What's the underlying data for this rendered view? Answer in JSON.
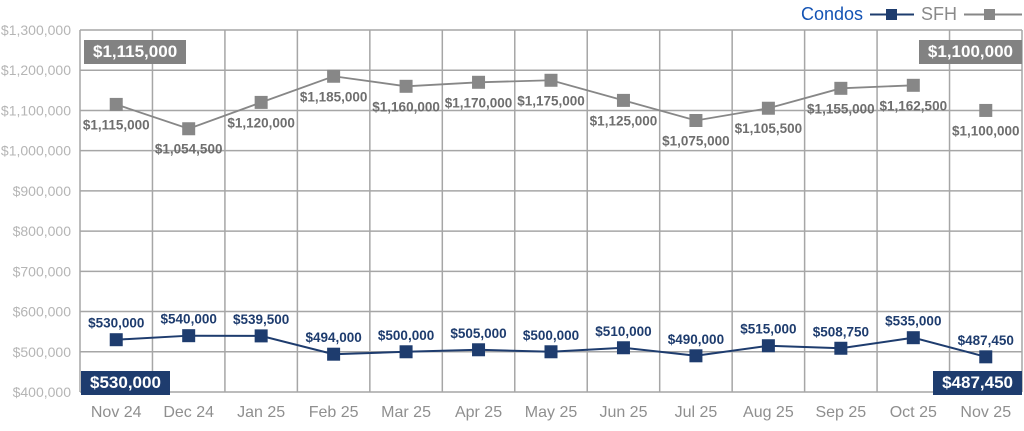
{
  "legend": {
    "condos_label": "Condos",
    "sfh_label": "SFH"
  },
  "callouts": {
    "top_left": "$1,115,000",
    "top_right": "$1,100,000",
    "bottom_left": "$530,000",
    "bottom_right": "$487,450"
  },
  "colors": {
    "condos": "#1e3c6e",
    "sfh": "#878787",
    "condos_legend_text": "#1353b4",
    "sfh_legend_text": "#8a8a8a",
    "condos_badge_bg": "#1e3c6e",
    "sfh_badge_bg": "#828282",
    "badge_text": "#ffffff",
    "gridline": "#a6a6a6",
    "y_tick_text": "#b5b5b5",
    "x_tick_text": "#8f8f8f"
  },
  "chart_data": {
    "type": "line",
    "title": "",
    "xlabel": "",
    "ylabel": "",
    "grid": true,
    "legend_position": "top-right",
    "categories": [
      "Nov 24",
      "Dec 24",
      "Jan 25",
      "Feb 25",
      "Mar 25",
      "Apr 25",
      "May 25",
      "Jun 25",
      "Jul 25",
      "Aug 25",
      "Sep 25",
      "Oct 25",
      "Nov 25"
    ],
    "ylim": [
      400000,
      1300000
    ],
    "y_tick_step": 100000,
    "grid_color": "#a6a6a6",
    "series": [
      {
        "name": "Condos",
        "color": "#1e3c6e",
        "label_color": "#1e3c6e",
        "label_position": "above",
        "line_width": 2,
        "marker": "square",
        "last_point_connected": true,
        "values": [
          530000,
          540000,
          539500,
          494000,
          500000,
          505000,
          500000,
          510000,
          490000,
          515000,
          508750,
          535000,
          487450
        ]
      },
      {
        "name": "SFH",
        "color": "#878787",
        "label_color": "#6e6e6e",
        "label_position": "below",
        "line_width": 1.8,
        "marker": "square",
        "last_point_connected": false,
        "values": [
          1115000,
          1054500,
          1120000,
          1185000,
          1160000,
          1170000,
          1175000,
          1125000,
          1075000,
          1105500,
          1155000,
          1162500,
          1100000
        ]
      }
    ]
  }
}
